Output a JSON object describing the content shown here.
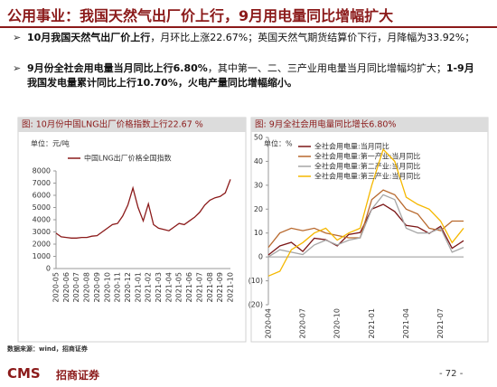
{
  "header": {
    "title": "公用事业：我国天然气出厂价上行，9月用电量同比增幅扩大"
  },
  "bullets": [
    {
      "segments": [
        {
          "text": "10月我国天然气出厂价上行",
          "bold": true
        },
        {
          "text": "，月环比上涨22.67%；英国天然气期货结算价下行，月降幅为33.92%；",
          "bold": false
        }
      ]
    },
    {
      "segments": [
        {
          "text": "9月份全社会用电量当月同比上行6.80%",
          "bold": true
        },
        {
          "text": "，其中第一、二、三产业用电量当月同比增幅均扩大；",
          "bold": false
        },
        {
          "text": "1-9月我国发电量累计同比上行10.70%，火电产量同比增幅缩小。",
          "bold": true
        }
      ]
    }
  ],
  "chart_data": [
    {
      "type": "line",
      "title": "图: 10月份中国LNG出厂价格指数上行22.67 %",
      "unit": "单位：元/吨",
      "categories": [
        "2020-05",
        null,
        "2020-06",
        null,
        "2020-07",
        null,
        "2020-08",
        null,
        "2020-09",
        null,
        "2020-10",
        null,
        "2020-11",
        null,
        "2020-12",
        null,
        "2021-01",
        null,
        "2021-02",
        null,
        "2021-03",
        null,
        "2021-04",
        null,
        "2021-05",
        null,
        "2021-06",
        null,
        "2021-07",
        null,
        "2021-08",
        null,
        "2021-09",
        null,
        "2021-10"
      ],
      "series": [
        {
          "name": "中国LNG出厂价格全国指数",
          "color": "#8b1a1a",
          "values": [
            2900,
            2600,
            2550,
            2500,
            2500,
            2550,
            2550,
            2650,
            2700,
            3000,
            3300,
            3600,
            3700,
            4300,
            5200,
            6600,
            5000,
            3900,
            5300,
            3600,
            3300,
            3200,
            3100,
            3400,
            3700,
            3600,
            3900,
            4200,
            4600,
            5200,
            5600,
            5800,
            5900,
            6200,
            7300
          ]
        }
      ],
      "ylim": [
        0,
        8000
      ],
      "yticks": [
        0,
        1000,
        2000,
        3000,
        4000,
        5000,
        6000,
        7000,
        8000
      ]
    },
    {
      "type": "line",
      "title": "图: 9月全社会用电量同比增长6.80%",
      "unit": "单位：%",
      "categories": [
        "2020-04",
        null,
        null,
        "2020-07",
        null,
        null,
        "2020-10",
        null,
        null,
        "2021-01",
        null,
        null,
        "2021-04",
        null,
        null,
        "2021-07",
        null,
        null
      ],
      "series": [
        {
          "name": "全社会用电量:当月同比",
          "color": "#7b1616",
          "values": [
            0.8,
            4.6,
            6.1,
            2.3,
            7.8,
            7.2,
            4.6,
            9.4,
            10.2,
            20,
            22,
            19,
            13.2,
            12.5,
            9.8,
            12.8,
            3.6,
            6.8
          ]
        },
        {
          "name": "全社会用电量:第一产业:当月同比",
          "color": "#b8692e",
          "values": [
            4,
            10,
            12,
            11,
            12,
            10,
            9,
            8,
            8,
            24,
            28,
            26,
            20,
            18,
            12,
            11,
            15,
            15
          ]
        },
        {
          "name": "全社会用电量:第二产业:当月同比",
          "color": "#a6a6a6",
          "values": [
            0,
            3,
            2,
            1,
            5,
            7,
            5,
            7,
            8,
            20,
            26,
            24,
            12,
            10,
            10,
            12,
            2,
            4
          ]
        },
        {
          "name": "全社会用电量:第三产业:当月同比",
          "color": "#f5b800",
          "values": [
            -8,
            -6,
            3,
            6,
            10,
            12,
            7,
            10,
            12,
            30,
            45,
            40,
            25,
            22,
            20,
            15,
            6,
            12
          ]
        }
      ],
      "ylim": [
        -20,
        50
      ],
      "yticks": [
        {
          "value": -20,
          "label": "(20)"
        },
        {
          "value": -10,
          "label": "(10)"
        },
        0,
        10,
        20,
        30,
        40,
        50
      ]
    }
  ],
  "footer": {
    "source": "数据来源：wind，招商证券",
    "logo": "CMS",
    "company": "招商证券",
    "page": "- 72 -"
  }
}
